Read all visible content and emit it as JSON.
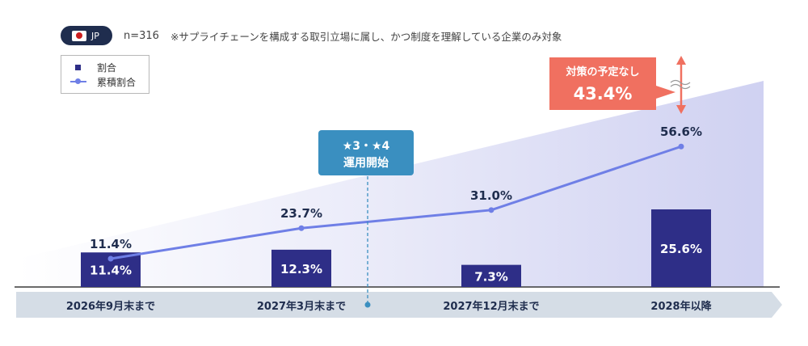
{
  "header": {
    "country_code": "JP",
    "sample_size": "n=316",
    "note": "※サプライチェーンを構成する取引立場に属し、かつ制度を理解している企業のみ対象"
  },
  "legend": {
    "bar_label": "割合",
    "line_label": "累積割合"
  },
  "callouts": {
    "operation_start": [
      "★3・★4",
      "運用開始"
    ],
    "no_plan_label": "対策の予定なし",
    "no_plan_value": "43.4%"
  },
  "colors": {
    "bar": "#2e2e87",
    "line": "#6f7fe6",
    "callout_blue": "#3a8fc0",
    "callout_red": "#f07060",
    "axis_band": "#d5dde6",
    "gradient": "#c7c9ef"
  },
  "chart_data": {
    "type": "bar",
    "categories": [
      "2026年9月末まで",
      "2027年3月末まで",
      "2027年12月末まで",
      "2028年以降"
    ],
    "series": [
      {
        "name": "割合",
        "kind": "bar",
        "values": [
          11.4,
          12.3,
          7.3,
          25.6
        ],
        "labels": [
          "11.4%",
          "12.3%",
          "7.3%",
          "25.6%"
        ]
      },
      {
        "name": "累積割合",
        "kind": "line",
        "values": [
          11.4,
          23.7,
          31.0,
          56.6
        ],
        "labels": [
          "11.4%",
          "23.7%",
          "31.0%",
          "56.6%"
        ]
      }
    ],
    "ylim": [
      0,
      100
    ],
    "grid": false,
    "legend_position": "top-left"
  }
}
